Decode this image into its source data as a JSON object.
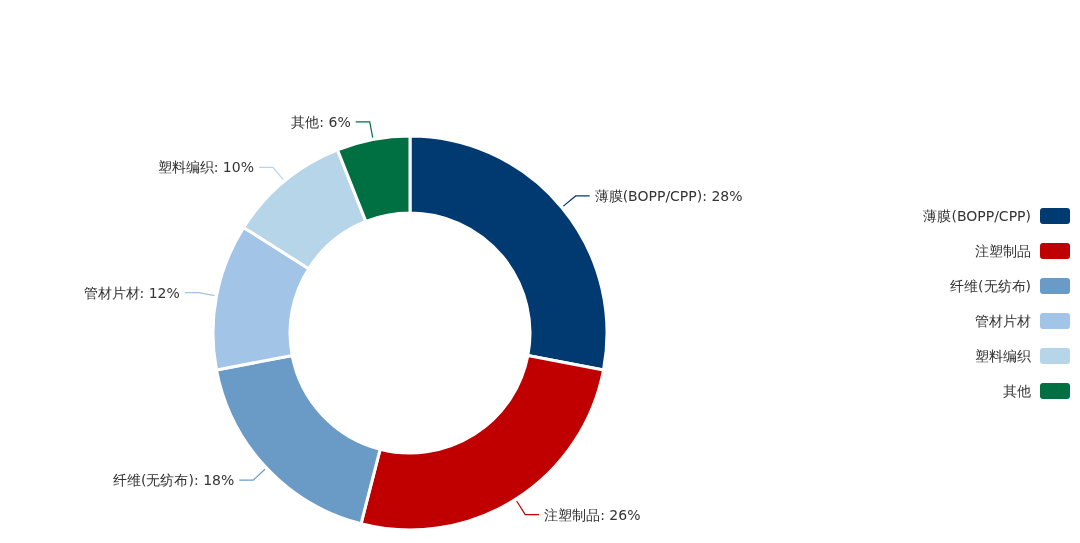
{
  "chart_data": {
    "type": "donut",
    "categories": [
      "薄膜(BOPP/CPP)",
      "注塑制品",
      "纤维(无纺布)",
      "管材片材",
      "塑料编织",
      "其他"
    ],
    "values": [
      28,
      26,
      18,
      12,
      10,
      6
    ],
    "colors": [
      "#003a70",
      "#c00000",
      "#6a9bc6",
      "#a1c4e7",
      "#b6d5e9",
      "#006f41"
    ],
    "value_labels": [
      ": 28%",
      ": 26%",
      ": 18%",
      ": 12%",
      ": 10%",
      ": 6%"
    ],
    "legend": "right"
  }
}
